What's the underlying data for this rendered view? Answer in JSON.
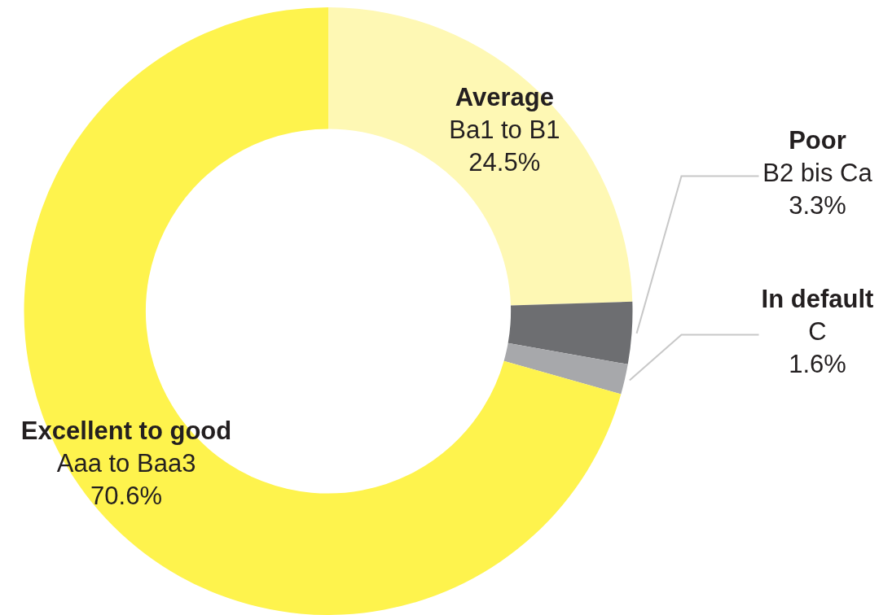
{
  "chart_data": {
    "type": "donut",
    "categories": [
      "Average\nBa1 to B1",
      "Poor\nB2 bis Ca",
      "In default\nC",
      "Excellent to good\nAaa to Baa3"
    ],
    "values": [
      24.5,
      3.3,
      1.6,
      70.6
    ],
    "colors": [
      "#fef8b4",
      "#6d6e71",
      "#a7a8ab",
      "#fef34d"
    ],
    "value_labels": [
      "24.5%",
      "3.3%",
      "1.6%",
      "70.6%"
    ],
    "legend": false
  }
}
